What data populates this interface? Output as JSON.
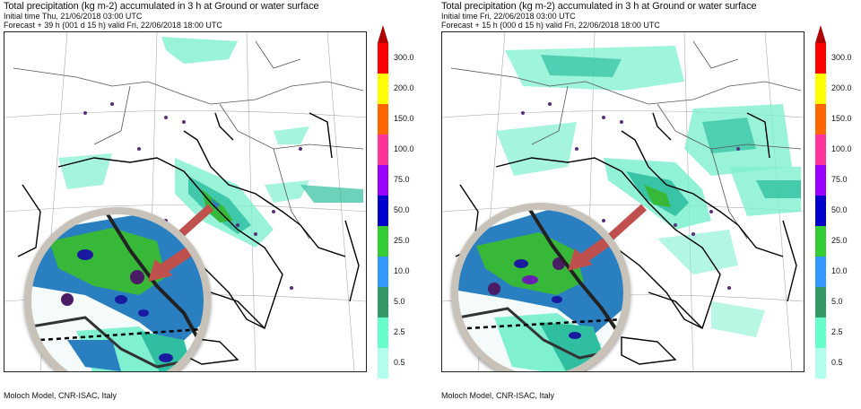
{
  "left": {
    "title": "Total precipitation (kg m-2) accumulated in   3 h at Ground or water surface",
    "init_line": "Initial time  Thu, 21/06/2018  03:00 UTC",
    "forecast_line": "Forecast +  39 h  (001 d 15 h)  valid Fri, 22/06/2018 18:00 UTC",
    "footer": "Moloch Model, CNR-ISAC, Italy"
  },
  "right": {
    "title": "Total precipitation (kg m-2) accumulated in   3 h at Ground or water surface",
    "init_line": "Initial time  Fri, 22/06/2018  03:00 UTC",
    "forecast_line": "Forecast +  15 h  (000 d 15 h)  valid Fri, 22/06/2018 18:00 UTC",
    "footer": "Moloch Model, CNR-ISAC, Italy"
  },
  "legend": {
    "labels": [
      "300.0",
      "200.0",
      "150.0",
      "100.0",
      "75.0",
      "50.0",
      "25.0",
      "10.0",
      "5.0",
      "2.5",
      "0.5"
    ],
    "colors": [
      "#ff0000",
      "#ffff00",
      "#ff6600",
      "#ff3399",
      "#9900ff",
      "#0000cc",
      "#33cc33",
      "#3399ff",
      "#339966",
      "#66ffcc",
      "#b3ffee"
    ],
    "top_arrow_color": "#b00000"
  },
  "colors": {
    "precip_light": "#7ff0d0",
    "precip_mid": "#2fbfa0",
    "precip_blue": "#2a7fc0",
    "precip_green": "#38b838",
    "precip_dark_blue": "#1a1aa0",
    "coast": "#000000",
    "border": "#444444",
    "arrow": "#c0504d",
    "lens_rim": "#c8c2b8"
  }
}
